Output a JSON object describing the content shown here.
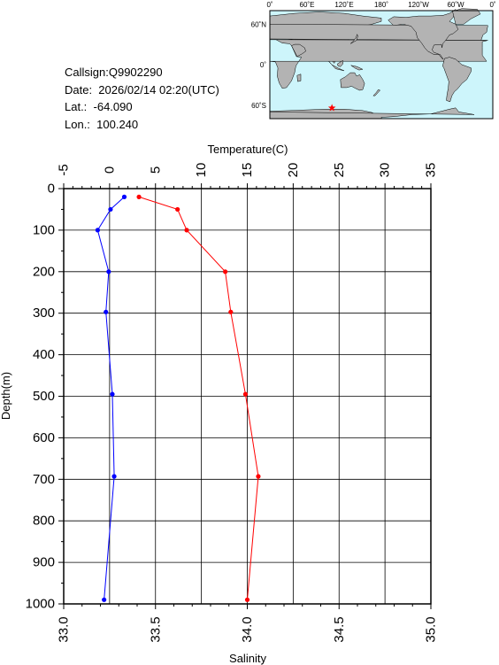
{
  "info": {
    "callsign": "Callsign:Q9902290",
    "date": "Date:  2026/02/14 02:20(UTC)",
    "lat": "Lat.:  -64.090",
    "lon": "Lon.:  100.240"
  },
  "map": {
    "lon_labels": [
      "0˚",
      "60˚E",
      "120˚E",
      "180˚",
      "120˚W",
      "60˚W",
      "0˚"
    ],
    "lat_labels": [
      "60˚N",
      "0˚",
      "60˚S"
    ],
    "station": {
      "lat": -64.09,
      "lon": 100.24
    },
    "ocean_color": "#cdf5fb",
    "land_color": "#b3b3b3",
    "marker_color": "#ff0000"
  },
  "chart_data": {
    "type": "line",
    "ylabel": "Depth(m)",
    "ylim": [
      1000,
      0
    ],
    "yticks": [
      0,
      100,
      200,
      300,
      400,
      500,
      600,
      700,
      800,
      900,
      1000
    ],
    "grid": true,
    "temperature_axis": {
      "label": "Temperature(C)",
      "position": "top",
      "range": [
        -5,
        35
      ],
      "ticks": [
        -5,
        0,
        5,
        10,
        15,
        20,
        25,
        30,
        35
      ]
    },
    "salinity_axis": {
      "label": "Salinity",
      "position": "bottom",
      "range": [
        33.0,
        35.0
      ],
      "ticks": [
        "33.0",
        "33.5",
        "34.0",
        "34.5",
        "35.0"
      ]
    },
    "series": [
      {
        "axis": "temperature",
        "color": "#0000ff",
        "points": [
          {
            "value": 1.6,
            "depth": 20
          },
          {
            "value": 0.1,
            "depth": 50
          },
          {
            "value": -1.3,
            "depth": 100
          },
          {
            "value": -0.1,
            "depth": 200
          },
          {
            "value": -0.4,
            "depth": 297
          },
          {
            "value": 0.3,
            "depth": 495
          },
          {
            "value": 0.5,
            "depth": 693
          },
          {
            "value": -0.6,
            "depth": 990
          }
        ]
      },
      {
        "axis": "salinity",
        "color": "#ff0000",
        "points": [
          {
            "value": 33.41,
            "depth": 20
          },
          {
            "value": 33.62,
            "depth": 50
          },
          {
            "value": 33.67,
            "depth": 100
          },
          {
            "value": 33.88,
            "depth": 200
          },
          {
            "value": 33.91,
            "depth": 297
          },
          {
            "value": 33.99,
            "depth": 495
          },
          {
            "value": 34.06,
            "depth": 693
          },
          {
            "value": 34.0,
            "depth": 990
          }
        ]
      }
    ]
  }
}
